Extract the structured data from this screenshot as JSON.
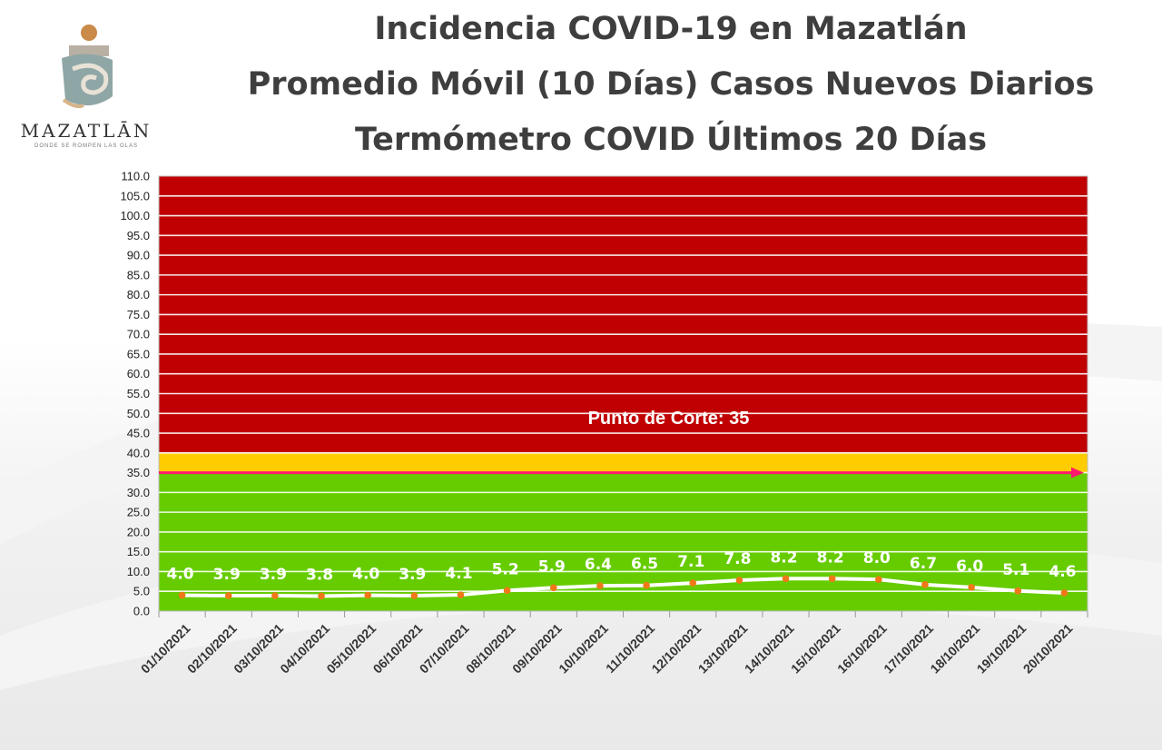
{
  "header": {
    "title_line1": "Incidencia COVID-19 en Mazatlán",
    "title_line2": "Promedio Móvil (10 Días) Casos Nuevos Diarios",
    "title_line3": "Termómetro COVID Últimos 20 Días"
  },
  "logo": {
    "wordmark": "MAZATLĀN",
    "tagline": "DONDE SE ROMPEN LAS OLAS"
  },
  "chart_data": {
    "type": "line",
    "title": "",
    "xlabel": "",
    "ylabel": "",
    "ylim": [
      0,
      110
    ],
    "ytick_step": 5,
    "grid": true,
    "categories": [
      "01/10/2021",
      "02/10/2021",
      "03/10/2021",
      "04/10/2021",
      "05/10/2021",
      "06/10/2021",
      "07/10/2021",
      "08/10/2021",
      "09/10/2021",
      "10/10/2021",
      "11/10/2021",
      "12/10/2021",
      "13/10/2021",
      "14/10/2021",
      "15/10/2021",
      "16/10/2021",
      "17/10/2021",
      "18/10/2021",
      "19/10/2021",
      "20/10/2021"
    ],
    "series": [
      {
        "values": [
          4.0,
          3.9,
          3.9,
          3.8,
          4.0,
          3.9,
          4.1,
          5.2,
          5.9,
          6.4,
          6.5,
          7.1,
          7.8,
          8.2,
          8.2,
          8.0,
          6.7,
          6.0,
          5.1,
          4.6
        ]
      }
    ],
    "bands": [
      {
        "from": 0,
        "to": 35,
        "color": "#66cc00"
      },
      {
        "from": 35,
        "to": 40,
        "color": "#ffcc00"
      },
      {
        "from": 40,
        "to": 110,
        "color": "#c00000"
      }
    ],
    "cutoff": {
      "value": 35,
      "label": "Punto de Corte: 35",
      "color": "#ff1a6e"
    },
    "colors": {
      "line": "#ffffff",
      "marker": "#f07818",
      "grid": "#ffffff"
    }
  }
}
